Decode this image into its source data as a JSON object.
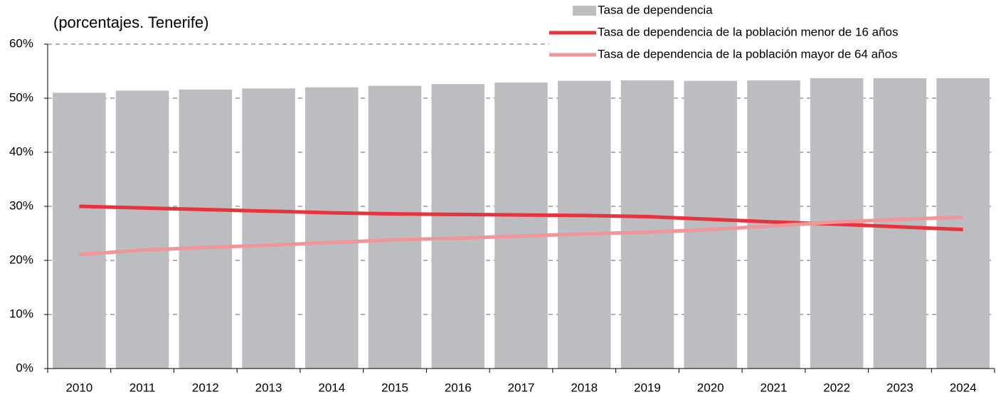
{
  "chart_data": {
    "type": "bar",
    "subtitle": "(porcentajes. Tenerife)",
    "categories": [
      "2010",
      "2011",
      "2012",
      "2013",
      "2014",
      "2015",
      "2016",
      "2017",
      "2018",
      "2019",
      "2020",
      "2021",
      "2022",
      "2023",
      "2024"
    ],
    "series": [
      {
        "name": "Tasa de dependencia",
        "type": "bar",
        "color": "#bcbdc1",
        "values": [
          51.0,
          51.4,
          51.6,
          51.8,
          52.0,
          52.3,
          52.6,
          52.9,
          53.2,
          53.3,
          53.2,
          53.3,
          53.7,
          53.7,
          53.7
        ]
      },
      {
        "name": "Tasa de dependencia de la población menor de 16 años",
        "type": "line",
        "color": "#e8323c",
        "values": [
          30.0,
          29.7,
          29.4,
          29.1,
          28.8,
          28.6,
          28.5,
          28.4,
          28.3,
          28.1,
          27.6,
          27.1,
          26.7,
          26.2,
          25.7
        ]
      },
      {
        "name": "Tasa de dependencia de la población mayor de 64 años",
        "type": "line",
        "color": "#f0959a",
        "values": [
          21.1,
          21.9,
          22.4,
          22.8,
          23.3,
          23.8,
          24.1,
          24.5,
          24.9,
          25.2,
          25.7,
          26.4,
          27.1,
          27.6,
          28.0
        ]
      }
    ],
    "ylim": [
      0,
      60
    ],
    "yticks": [
      {
        "value": 0,
        "label": "0%"
      },
      {
        "value": 10,
        "label": "10%"
      },
      {
        "value": 20,
        "label": "20%"
      },
      {
        "value": 30,
        "label": "30%"
      },
      {
        "value": 40,
        "label": "40%"
      },
      {
        "value": 50,
        "label": "50%"
      },
      {
        "value": 60,
        "label": "60%"
      }
    ],
    "grid": true,
    "legend": "top-right"
  }
}
